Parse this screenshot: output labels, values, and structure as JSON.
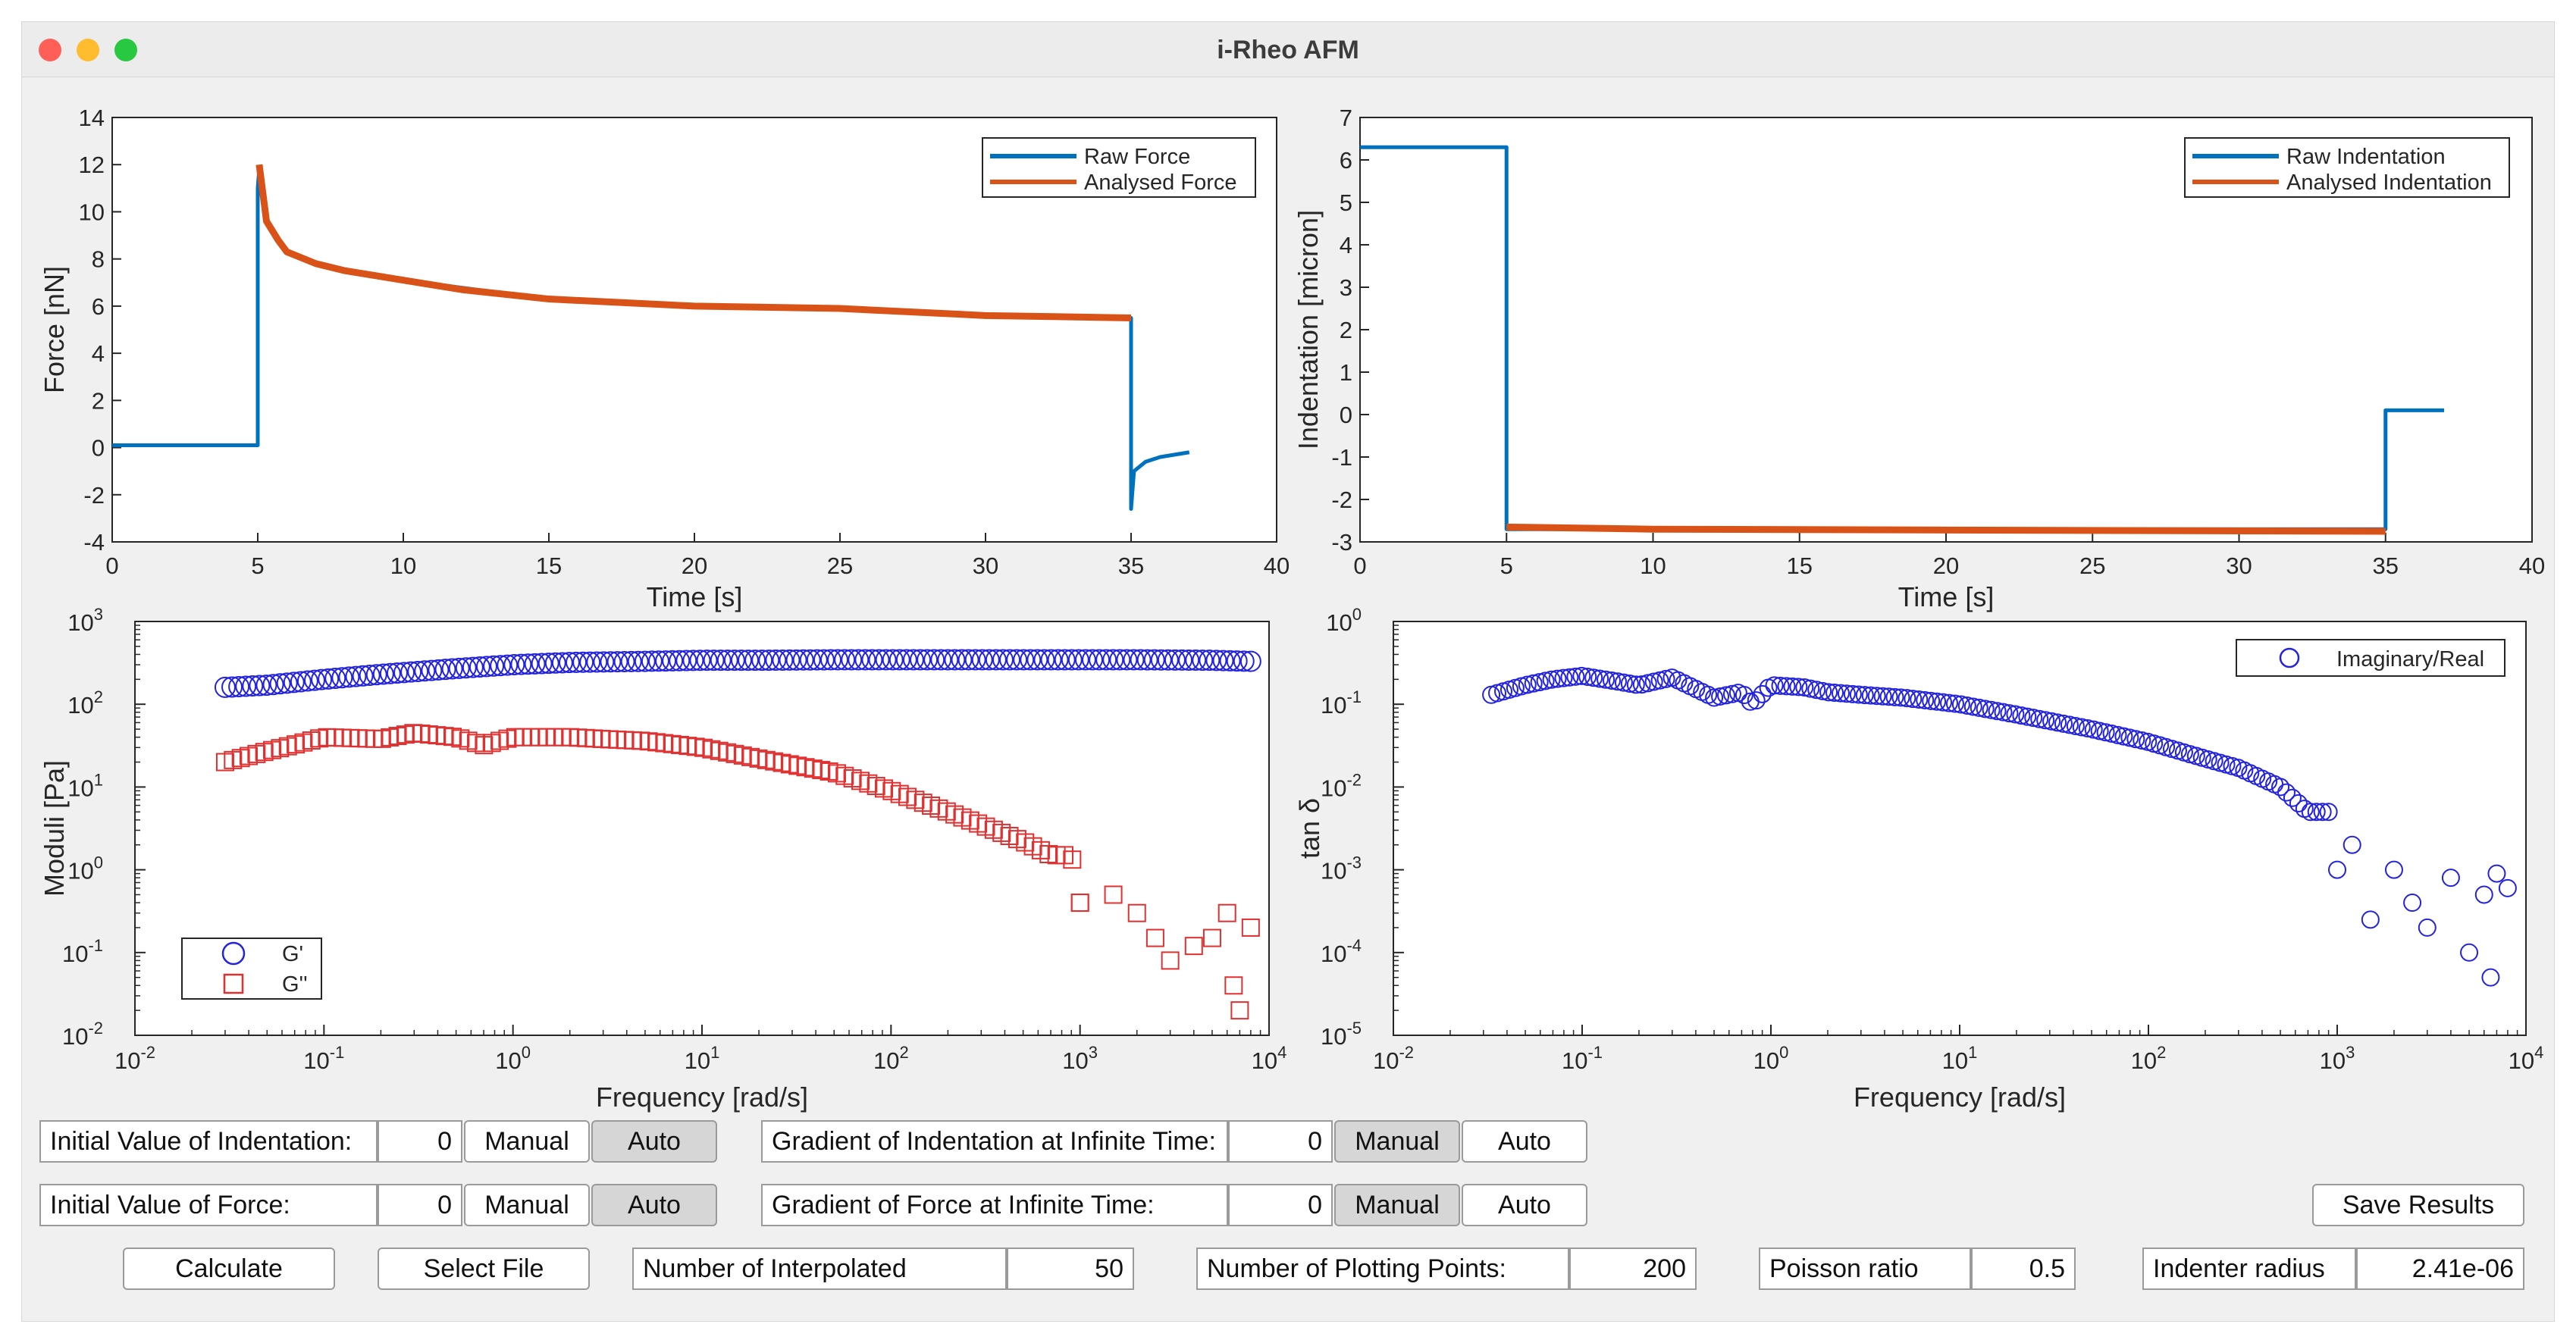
{
  "window": {
    "title": "i-Rheo AFM"
  },
  "colors": {
    "blue": "#0072BD",
    "orange": "#D95319",
    "gp": "#2222E0",
    "gpp": "#E03030"
  },
  "plots": {
    "force": {
      "xlabel": "Time [s]",
      "ylabel": "Force [nN]",
      "xticks": [
        "0",
        "5",
        "10",
        "15",
        "20",
        "25",
        "30",
        "35",
        "40"
      ],
      "yticks": [
        "-4",
        "-2",
        "0",
        "2",
        "4",
        "6",
        "8",
        "10",
        "12",
        "14"
      ],
      "legend": [
        "Raw Force",
        "Analysed Force"
      ]
    },
    "indent": {
      "xlabel": "Time [s]",
      "ylabel": "Indentation [micron]",
      "xticks": [
        "0",
        "5",
        "10",
        "15",
        "20",
        "25",
        "30",
        "35",
        "40"
      ],
      "yticks": [
        "-3",
        "-2",
        "-1",
        "0",
        "1",
        "2",
        "3",
        "4",
        "5",
        "6",
        "7"
      ],
      "legend": [
        "Raw Indentation",
        "Analysed Indentation"
      ]
    },
    "moduli": {
      "xlabel": "Frequency [rad/s]",
      "ylabel": "Moduli [Pa]",
      "xexp": [
        "-2",
        "-1",
        "0",
        "1",
        "2",
        "3",
        "4"
      ],
      "yexp": [
        "-2",
        "-1",
        "0",
        "1",
        "2",
        "3"
      ],
      "legend": [
        "G'",
        "G''"
      ]
    },
    "tand": {
      "xlabel": "Frequency [rad/s]",
      "ylabel": "tan  δ",
      "xexp": [
        "-2",
        "-1",
        "0",
        "1",
        "2",
        "3",
        "4"
      ],
      "yexp": [
        "-5",
        "-4",
        "-3",
        "-2",
        "-1",
        "0"
      ],
      "legend": [
        "Imaginary/Real"
      ]
    }
  },
  "chart_data": [
    {
      "type": "line",
      "title": "",
      "xlabel": "Time [s]",
      "ylabel": "Force [nN]",
      "xlim": [
        0,
        40
      ],
      "ylim": [
        -4,
        14
      ],
      "series": [
        {
          "name": "Raw Force",
          "x": [
            0,
            5,
            5,
            5.05,
            5.3,
            6,
            7,
            8,
            10,
            15,
            20,
            25,
            30,
            35,
            35,
            35.1,
            35.5,
            36,
            37
          ],
          "y": [
            0.1,
            0.1,
            11,
            11.8,
            9.5,
            8.3,
            7.8,
            7.5,
            7.1,
            6.3,
            6.0,
            5.9,
            5.6,
            5.5,
            -2.6,
            -1.0,
            -0.6,
            -0.4,
            -0.2
          ]
        },
        {
          "name": "Analysed Force",
          "x": [
            5.05,
            5.3,
            5.7,
            6,
            7,
            8,
            10,
            12,
            15,
            20,
            25,
            30,
            35
          ],
          "y": [
            12.0,
            9.6,
            8.8,
            8.3,
            7.8,
            7.5,
            7.1,
            6.7,
            6.3,
            6.0,
            5.9,
            5.6,
            5.5
          ]
        }
      ]
    },
    {
      "type": "line",
      "title": "",
      "xlabel": "Time [s]",
      "ylabel": "Indentation [micron]",
      "xlim": [
        0,
        40
      ],
      "ylim": [
        -3,
        7
      ],
      "series": [
        {
          "name": "Raw Indentation",
          "x": [
            0,
            5,
            5,
            35,
            35,
            37
          ],
          "y": [
            6.3,
            6.3,
            -2.7,
            -2.7,
            0.1,
            0.1
          ]
        },
        {
          "name": "Analysed Indentation",
          "x": [
            5,
            10,
            20,
            30,
            35
          ],
          "y": [
            -2.65,
            -2.7,
            -2.72,
            -2.74,
            -2.75
          ]
        }
      ]
    },
    {
      "type": "scatter",
      "title": "",
      "xlabel": "Frequency [rad/s]",
      "ylabel": "Moduli [Pa]",
      "xscale": "log",
      "yscale": "log",
      "xlim": [
        0.01,
        10000
      ],
      "ylim": [
        0.01,
        1000
      ],
      "series": [
        {
          "name": "G'",
          "x": [
            0.03,
            0.05,
            0.1,
            0.2,
            0.5,
            1,
            2,
            5,
            10,
            20,
            50,
            100,
            200,
            500,
            1000,
            2000,
            5000,
            8000
          ],
          "y": [
            160,
            170,
            200,
            230,
            270,
            300,
            320,
            330,
            340,
            340,
            345,
            345,
            345,
            345,
            345,
            345,
            340,
            330
          ]
        },
        {
          "name": "G''",
          "x": [
            0.03,
            0.05,
            0.08,
            0.1,
            0.2,
            0.3,
            0.5,
            0.7,
            1,
            2,
            3,
            5,
            10,
            20,
            50,
            100,
            200,
            300,
            500,
            700,
            900,
            1000,
            1500,
            2000,
            2500,
            3000,
            4000,
            5000,
            6000,
            6500,
            7000,
            8000
          ],
          "y": [
            20,
            27,
            35,
            40,
            38,
            45,
            40,
            32,
            40,
            40,
            38,
            36,
            30,
            22,
            15,
            9,
            5,
            3.5,
            2.2,
            1.5,
            1.5,
            0.4,
            0.5,
            0.3,
            0.15,
            0.08,
            0.12,
            0.15,
            0.3,
            0.04,
            0.02,
            0.2
          ]
        }
      ]
    },
    {
      "type": "scatter",
      "title": "",
      "xlabel": "Frequency [rad/s]",
      "ylabel": "tan δ",
      "xscale": "log",
      "yscale": "log",
      "xlim": [
        0.01,
        10000
      ],
      "ylim": [
        1e-05,
        1
      ],
      "series": [
        {
          "name": "Imaginary/Real",
          "x": [
            0.033,
            0.05,
            0.07,
            0.1,
            0.15,
            0.2,
            0.3,
            0.5,
            0.7,
            0.8,
            1,
            1.5,
            2,
            3,
            5,
            10,
            20,
            50,
            100,
            200,
            300,
            500,
            700,
            900,
            1000,
            1200,
            1500,
            2000,
            2500,
            3000,
            4000,
            5000,
            6000,
            6500,
            7000,
            8000
          ],
          "y": [
            0.13,
            0.17,
            0.2,
            0.22,
            0.19,
            0.17,
            0.21,
            0.12,
            0.14,
            0.1,
            0.17,
            0.16,
            0.14,
            0.13,
            0.12,
            0.1,
            0.075,
            0.05,
            0.035,
            0.022,
            0.017,
            0.01,
            0.005,
            0.005,
            0.001,
            0.002,
            0.00025,
            0.001,
            0.0004,
            0.0002,
            0.0008,
            0.0001,
            0.0005,
            5e-05,
            0.0009,
            0.0006
          ]
        }
      ]
    }
  ],
  "controls": {
    "init_indent_label": "Initial Value of Indentation:",
    "init_indent_value": "0",
    "init_force_label": "Initial Value of Force:",
    "init_force_value": "0",
    "grad_indent_label": "Gradient of Indentation at Infinite Time:",
    "grad_indent_value": "0",
    "grad_force_label": "Gradient of Force at Infinite Time:",
    "grad_force_value": "0",
    "manual": "Manual",
    "auto": "Auto",
    "save": "Save Results",
    "calculate": "Calculate",
    "select_file": "Select File",
    "interp_label": "Number of Interpolated",
    "interp_value": "50",
    "plotpts_label": "Number of Plotting Points:",
    "plotpts_value": "200",
    "poisson_label": "Poisson ratio",
    "poisson_value": "0.5",
    "radius_label": "Indenter radius",
    "radius_value": "2.41e-06"
  }
}
